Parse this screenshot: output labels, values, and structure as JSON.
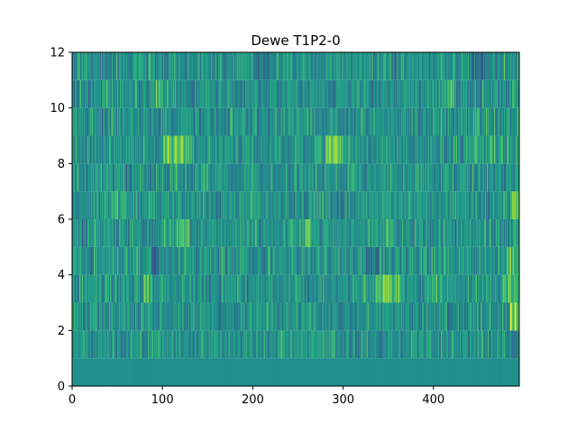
{
  "chart_data": {
    "type": "heatmap",
    "title": "Dewe T1P2-0",
    "xlabel": "",
    "ylabel": "",
    "xlim": [
      0,
      495
    ],
    "ylim": [
      0,
      12
    ],
    "xticks": [
      0,
      100,
      200,
      300,
      400
    ],
    "yticks": [
      0,
      2,
      4,
      6,
      8,
      10,
      12
    ],
    "x_tick_labels": [
      "0",
      "100",
      "200",
      "300",
      "400"
    ],
    "y_tick_labels": [
      "0",
      "2",
      "4",
      "6",
      "8",
      "10",
      "12"
    ],
    "rows": 12,
    "columns": 495,
    "colormap": "viridis",
    "colorbar": false,
    "grid": false,
    "row_descriptions": [
      {
        "row": 0,
        "y_range": [
          0,
          1
        ],
        "pattern": "uniform teal, nearly constant"
      },
      {
        "row": 1,
        "y_range": [
          1,
          2
        ],
        "pattern": "dense vertical stripes, blue-teal-green"
      },
      {
        "row": 2,
        "y_range": [
          2,
          3
        ],
        "pattern": "dense vertical stripes, bright green near x≈490"
      },
      {
        "row": 3,
        "y_range": [
          3,
          4
        ],
        "pattern": "green-yellow clusters near x≈340-360 and x≈480"
      },
      {
        "row": 4,
        "y_range": [
          4,
          5
        ],
        "pattern": "mixed stripes, dark blue bands near x≈90 and x≈330"
      },
      {
        "row": 5,
        "y_range": [
          5,
          6
        ],
        "pattern": "bright green bands near x≈120 and x≈260"
      },
      {
        "row": 6,
        "y_range": [
          6,
          7
        ],
        "pattern": "mixed stripes, yellow near x≈490"
      },
      {
        "row": 7,
        "y_range": [
          7,
          8
        ],
        "pattern": "mixed stripes"
      },
      {
        "row": 8,
        "y_range": [
          8,
          9
        ],
        "pattern": "bright yellow-green near x≈100-130 and x≈285-300"
      },
      {
        "row": 9,
        "y_range": [
          9,
          10
        ],
        "pattern": "mixed stripes, blue-teal"
      },
      {
        "row": 10,
        "y_range": [
          10,
          11
        ],
        "pattern": "yellow-green stripes near x≈95 and x≈415"
      },
      {
        "row": 11,
        "y_range": [
          11,
          12
        ],
        "pattern": "mixed stripes, darker blue-teal"
      }
    ]
  }
}
